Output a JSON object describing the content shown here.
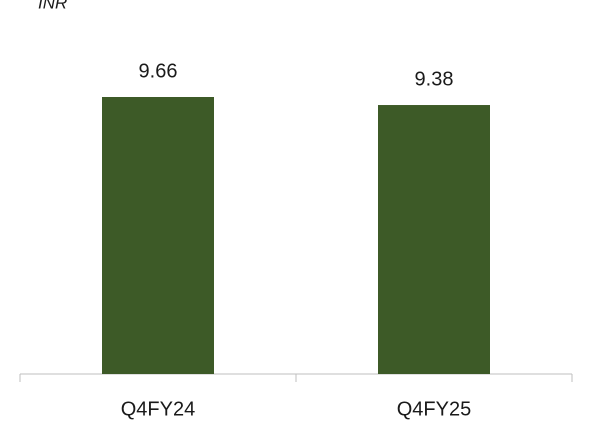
{
  "chart_data": {
    "type": "bar",
    "unit_label": "INR",
    "categories": [
      "Q4FY24",
      "Q4FY25"
    ],
    "values": [
      9.66,
      9.38
    ],
    "color": "#3d5a27"
  }
}
